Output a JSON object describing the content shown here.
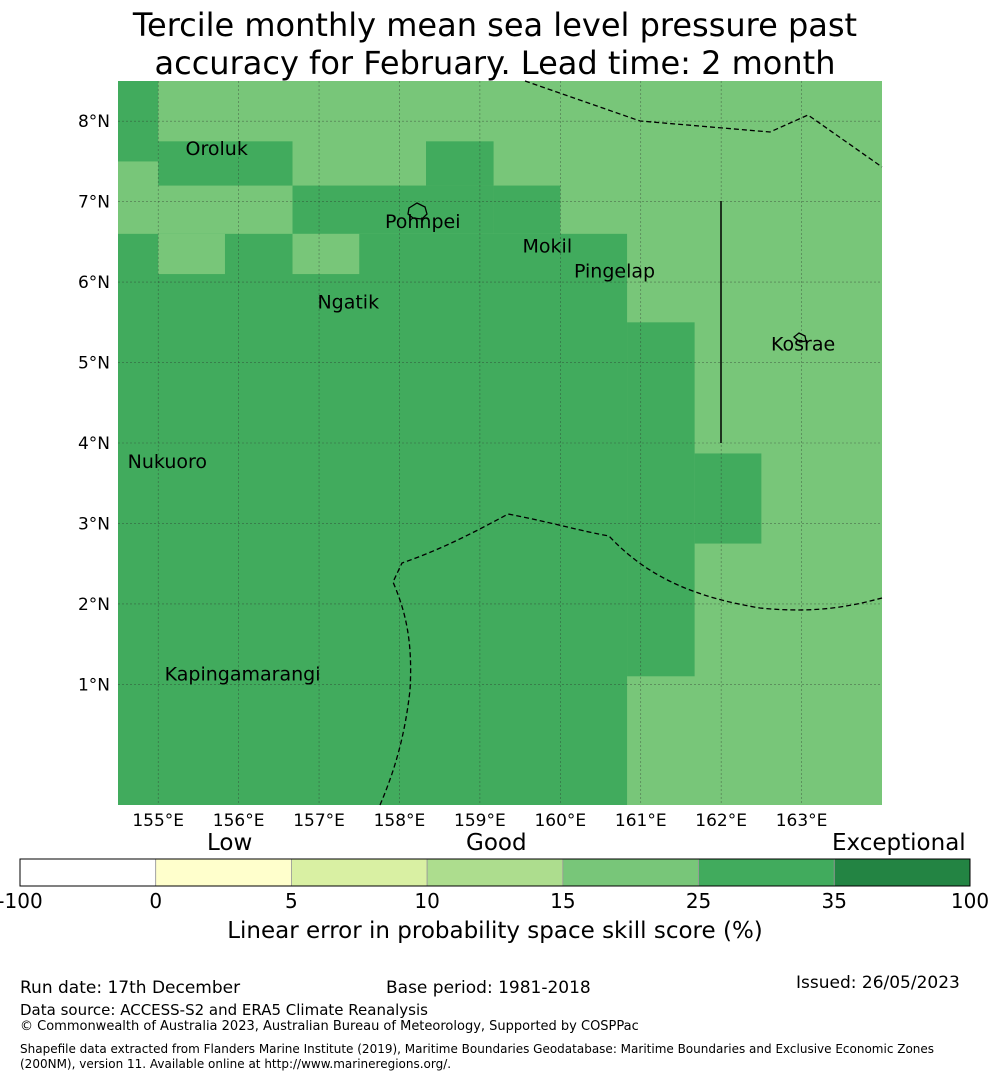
{
  "title_line1": "Tercile monthly mean sea level pressure past",
  "title_line2": "accuracy for February. Lead time: 2 month",
  "map": {
    "lon_range": [
      154.5,
      164.0
    ],
    "lat_range": [
      -0.5,
      8.5
    ],
    "lon_ticks": [
      "155°E",
      "156°E",
      "157°E",
      "158°E",
      "159°E",
      "160°E",
      "161°E",
      "162°E",
      "163°E"
    ],
    "lat_ticks": [
      "1°N",
      "2°N",
      "3°N",
      "4°N",
      "5°N",
      "6°N",
      "7°N",
      "8°N"
    ],
    "places": [
      {
        "name": "Oroluk",
        "lon": 155.34,
        "lat": 7.58
      },
      {
        "name": "Pohnpei",
        "lon": 157.82,
        "lat": 6.67
      },
      {
        "name": "Mokil",
        "lon": 159.53,
        "lat": 6.37
      },
      {
        "name": "Pingelap",
        "lon": 160.17,
        "lat": 6.06
      },
      {
        "name": "Ngatik",
        "lon": 156.98,
        "lat": 5.67
      },
      {
        "name": "Kosrae",
        "lon": 162.62,
        "lat": 5.15
      },
      {
        "name": "Nukuoro",
        "lon": 154.62,
        "lat": 3.69
      },
      {
        "name": "Kapingamarangi",
        "lon": 155.08,
        "lat": 1.05
      }
    ],
    "skill_colors": {
      "c15_25": "#78c679",
      "c25_35": "#41ab5d"
    },
    "skill_regions_25_35": [
      {
        "lon": [
          154.5,
          155.0
        ],
        "lat": [
          7.5,
          8.5
        ]
      },
      {
        "lon": [
          155.0,
          156.67
        ],
        "lat": [
          7.2,
          7.75
        ]
      },
      {
        "lon": [
          156.67,
          159.17
        ],
        "lat": [
          6.6,
          7.2
        ]
      },
      {
        "lon": [
          158.33,
          159.17
        ],
        "lat": [
          7.2,
          7.75
        ]
      },
      {
        "lon": [
          159.17,
          160.0
        ],
        "lat": [
          6.6,
          7.2
        ]
      },
      {
        "lon": [
          154.5,
          160.83
        ],
        "lat": [
          -0.5,
          6.6
        ]
      },
      {
        "lon": [
          160.83,
          161.67
        ],
        "lat": [
          1.1,
          5.5
        ]
      },
      {
        "lon": [
          161.67,
          162.5
        ],
        "lat": [
          2.75,
          3.87
        ]
      }
    ],
    "skill_regions_15_25": [
      {
        "lon": [
          155.0,
          155.83
        ],
        "lat": [
          6.1,
          6.6
        ]
      },
      {
        "lon": [
          156.67,
          157.5
        ],
        "lat": [
          6.1,
          6.6
        ]
      }
    ]
  },
  "categories": {
    "low": "Low",
    "good": "Good",
    "exceptional": "Exceptional"
  },
  "colorbar": {
    "ticks": [
      "-100",
      "0",
      "5",
      "10",
      "15",
      "25",
      "35",
      "100"
    ],
    "colors": [
      "#ffffff",
      "#ffffcc",
      "#d9f0a3",
      "#addd8e",
      "#78c679",
      "#41ab5d",
      "#238443"
    ],
    "label": "Linear error in probability space skill score (%)"
  },
  "footer": {
    "run_date": "Run date: 17th December",
    "base_period": "Base period: 1981-2018",
    "issued": "Issued: 26/05/2023",
    "data_source": "Data source: ACCESS-S2 and ERA5 Climate Reanalysis",
    "copyright": "© Commonwealth of Australia 2023, Australian Bureau of Meteorology, Supported by COSPPac",
    "shapefile": "Shapefile data extracted from Flanders Marine Institute (2019), Maritime Boundaries Geodatabase: Maritime Boundaries and Exclusive Economic Zones (200NM), version 11. Available online at http://www.marineregions.org/."
  }
}
